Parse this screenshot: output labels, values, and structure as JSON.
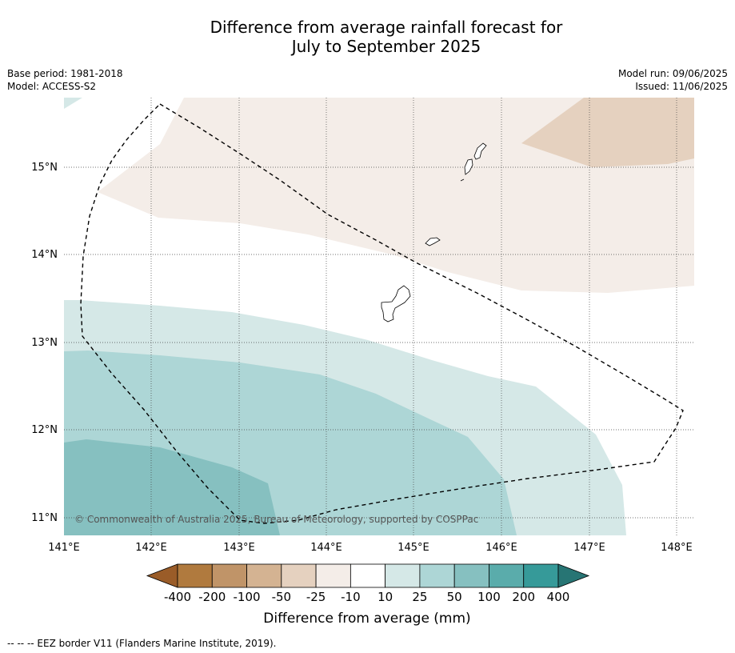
{
  "title_line1": "Difference from average rainfall forecast for",
  "title_line2": "July to September 2025",
  "base_period": "Base period: 1981-2018",
  "model": "Model: ACCESS-S2",
  "model_run": "Model run: 09/06/2025",
  "issued": "Issued: 11/06/2025",
  "copyright": "© Commonwealth of Australia 2025, Bureau of Meteorology, supported by COSPPac",
  "lat_labels": [
    "15°N",
    "14°N",
    "13°N",
    "12°N",
    "11°N"
  ],
  "lon_labels": [
    "141°E",
    "142°E",
    "143°E",
    "144°E",
    "145°E",
    "146°E",
    "147°E",
    "148°E"
  ],
  "colorbar": {
    "title": "Difference from average (mm)",
    "tick_labels": [
      "-400",
      "-200",
      "-100",
      "-50",
      "-25",
      "-10",
      "10",
      "25",
      "50",
      "100",
      "200",
      "400"
    ],
    "colors": [
      "#9a5c28",
      "#b07a3e",
      "#c09468",
      "#d4b392",
      "#e5d1bf",
      "#f4ede8",
      "#ffffff",
      "#d5e8e7",
      "#add6d6",
      "#86c0c0",
      "#5aacab",
      "#369a99",
      "#277574"
    ]
  },
  "footer": "--  --  -- EEZ border V11 (Flanders Marine Institute, 2019)."
}
